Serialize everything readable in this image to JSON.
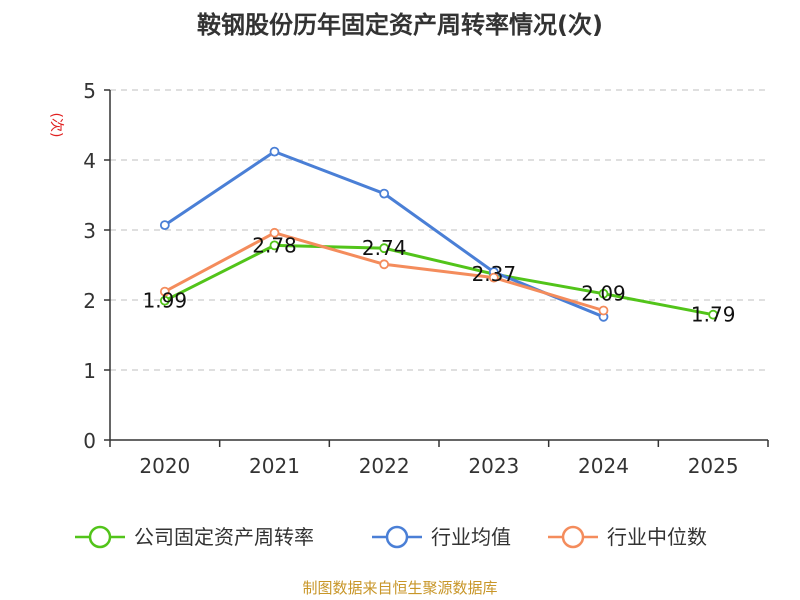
{
  "chart_data": {
    "type": "line",
    "title": "鞍钢股份历年固定资产周转率情况(次)",
    "ylabel": "(次)",
    "xlabel": "",
    "categories": [
      "2020",
      "2021",
      "2022",
      "2023",
      "2024",
      "2025"
    ],
    "ylim": [
      0,
      5
    ],
    "yticks": [
      "0",
      "1",
      "2",
      "3",
      "4",
      "5"
    ],
    "grid": true,
    "legend_position": "bottom",
    "series": [
      {
        "name": "公司固定资产周转率",
        "color": "#52c41a",
        "values": [
          1.99,
          2.78,
          2.74,
          2.37,
          2.09,
          1.79
        ],
        "labels": [
          "1.99",
          "2.78",
          "2.74",
          "2.37",
          "2.09",
          "1.79"
        ]
      },
      {
        "name": "行业均值",
        "color": "#4a7fd6",
        "values": [
          3.07,
          4.12,
          3.52,
          2.4,
          1.76,
          null
        ]
      },
      {
        "name": "行业中位数",
        "color": "#f48c5c",
        "values": [
          2.12,
          2.96,
          2.51,
          2.32,
          1.85,
          null
        ]
      }
    ]
  },
  "source_text": "制图数据来自恒生聚源数据库"
}
